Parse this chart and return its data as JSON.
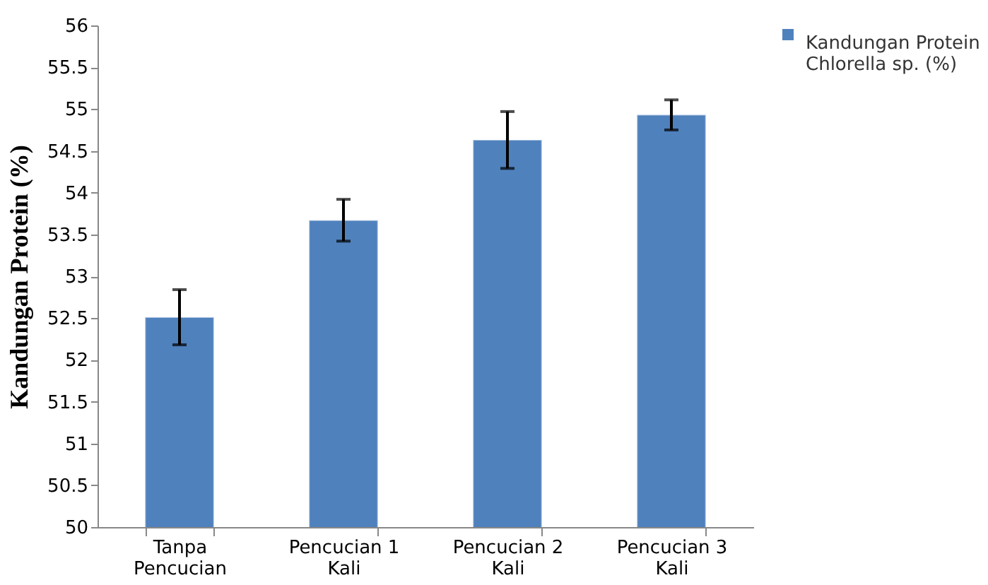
{
  "chart_data": {
    "type": "bar",
    "ylabel": "Kandungan Protein (%)",
    "categories": [
      "Tanpa Pencucian",
      "Pencucian 1 Kali",
      "Pencucian 2 Kali",
      "Pencucian 3 Kali"
    ],
    "series": [
      {
        "name": "Kandungan Protein Chlorella sp. (%)",
        "color": "#4f81bd",
        "values": [
          52.51,
          53.67,
          54.63,
          54.93
        ],
        "errors": [
          0.33,
          0.25,
          0.34,
          0.18
        ]
      }
    ],
    "ylim": [
      50,
      56
    ],
    "yticks": [
      50,
      50.5,
      51,
      51.5,
      52,
      52.5,
      53,
      53.5,
      54,
      54.5,
      55,
      55.5,
      56
    ],
    "grid": false,
    "legend": "right"
  }
}
